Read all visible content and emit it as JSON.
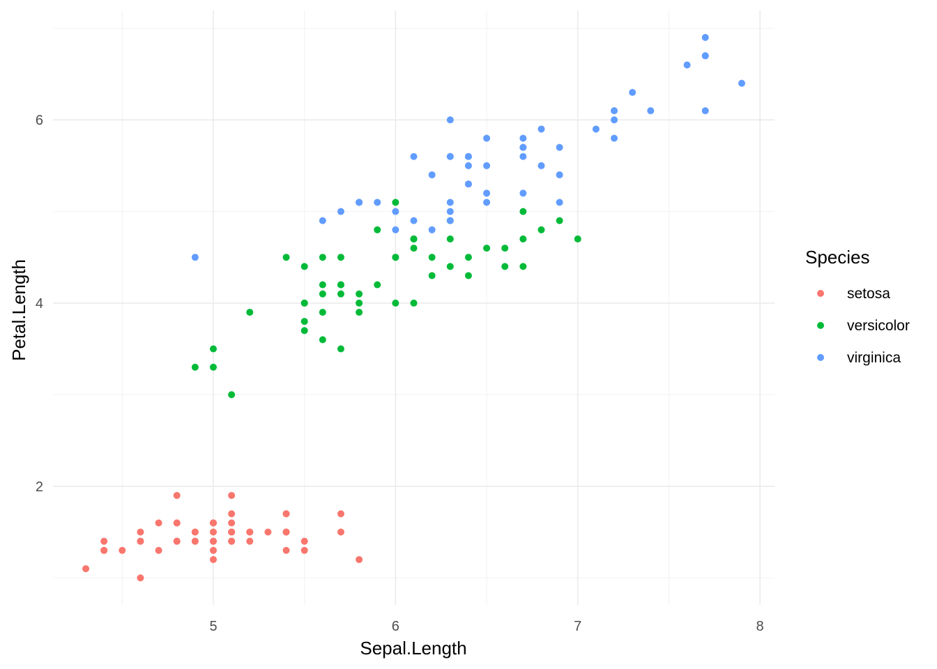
{
  "chart_data": {
    "type": "scatter",
    "xlabel": "Sepal.Length",
    "ylabel": "Petal.Length",
    "xlim": [
      4.12,
      8.08
    ],
    "ylim": [
      0.705,
      7.195
    ],
    "x_ticks": [
      5,
      6,
      7,
      8
    ],
    "x_tick_labels": [
      "5",
      "6",
      "7",
      "8"
    ],
    "y_ticks": [
      2,
      4,
      6
    ],
    "y_tick_labels": [
      "2",
      "4",
      "6"
    ],
    "x_minor_ticks": [
      4.5,
      5.5,
      6.5,
      7.5
    ],
    "y_minor_ticks": [
      1,
      3,
      5,
      7
    ],
    "grid": true,
    "legend": {
      "title": "Species",
      "position": "right",
      "entries": [
        "setosa",
        "versicolor",
        "virginica"
      ]
    },
    "series": [
      {
        "name": "setosa",
        "color": "#F8766D",
        "points": [
          [
            5.1,
            1.4
          ],
          [
            4.9,
            1.4
          ],
          [
            4.7,
            1.3
          ],
          [
            4.6,
            1.5
          ],
          [
            5.0,
            1.4
          ],
          [
            5.4,
            1.7
          ],
          [
            4.6,
            1.4
          ],
          [
            5.0,
            1.5
          ],
          [
            4.4,
            1.4
          ],
          [
            4.9,
            1.5
          ],
          [
            5.4,
            1.5
          ],
          [
            4.8,
            1.6
          ],
          [
            4.8,
            1.4
          ],
          [
            4.3,
            1.1
          ],
          [
            5.8,
            1.2
          ],
          [
            5.7,
            1.5
          ],
          [
            5.4,
            1.3
          ],
          [
            5.1,
            1.4
          ],
          [
            5.7,
            1.7
          ],
          [
            5.1,
            1.5
          ],
          [
            5.4,
            1.7
          ],
          [
            5.1,
            1.5
          ],
          [
            4.6,
            1.0
          ],
          [
            5.1,
            1.7
          ],
          [
            4.8,
            1.9
          ],
          [
            5.0,
            1.6
          ],
          [
            5.0,
            1.6
          ],
          [
            5.2,
            1.5
          ],
          [
            5.2,
            1.4
          ],
          [
            4.7,
            1.6
          ],
          [
            4.8,
            1.6
          ],
          [
            5.4,
            1.5
          ],
          [
            5.2,
            1.5
          ],
          [
            5.5,
            1.4
          ],
          [
            4.9,
            1.5
          ],
          [
            5.0,
            1.2
          ],
          [
            5.5,
            1.3
          ],
          [
            4.9,
            1.4
          ],
          [
            4.4,
            1.3
          ],
          [
            5.1,
            1.5
          ],
          [
            5.0,
            1.3
          ],
          [
            4.5,
            1.3
          ],
          [
            4.4,
            1.3
          ],
          [
            5.0,
            1.6
          ],
          [
            5.1,
            1.9
          ],
          [
            4.8,
            1.4
          ],
          [
            5.1,
            1.6
          ],
          [
            4.6,
            1.4
          ],
          [
            5.3,
            1.5
          ],
          [
            5.0,
            1.4
          ]
        ]
      },
      {
        "name": "versicolor",
        "color": "#00BA38",
        "points": [
          [
            7.0,
            4.7
          ],
          [
            6.4,
            4.5
          ],
          [
            6.9,
            4.9
          ],
          [
            5.5,
            4.0
          ],
          [
            6.5,
            4.6
          ],
          [
            5.7,
            4.5
          ],
          [
            6.3,
            4.7
          ],
          [
            4.9,
            3.3
          ],
          [
            6.6,
            4.6
          ],
          [
            5.2,
            3.9
          ],
          [
            5.0,
            3.5
          ],
          [
            5.9,
            4.2
          ],
          [
            6.0,
            4.0
          ],
          [
            6.1,
            4.7
          ],
          [
            5.6,
            3.6
          ],
          [
            6.7,
            4.4
          ],
          [
            5.6,
            4.5
          ],
          [
            5.8,
            4.1
          ],
          [
            6.2,
            4.5
          ],
          [
            5.6,
            3.9
          ],
          [
            5.9,
            4.8
          ],
          [
            6.1,
            4.0
          ],
          [
            6.3,
            4.9
          ],
          [
            6.1,
            4.7
          ],
          [
            6.4,
            4.3
          ],
          [
            6.6,
            4.4
          ],
          [
            6.8,
            4.8
          ],
          [
            6.7,
            5.0
          ],
          [
            6.0,
            4.5
          ],
          [
            5.7,
            3.5
          ],
          [
            5.5,
            3.8
          ],
          [
            5.5,
            3.7
          ],
          [
            5.8,
            3.9
          ],
          [
            6.0,
            5.1
          ],
          [
            5.4,
            4.5
          ],
          [
            6.0,
            4.5
          ],
          [
            6.7,
            4.7
          ],
          [
            6.3,
            4.4
          ],
          [
            5.6,
            4.1
          ],
          [
            5.5,
            4.0
          ],
          [
            5.5,
            4.4
          ],
          [
            6.1,
            4.6
          ],
          [
            5.8,
            4.0
          ],
          [
            5.0,
            3.3
          ],
          [
            5.6,
            4.2
          ],
          [
            5.7,
            4.2
          ],
          [
            5.7,
            4.2
          ],
          [
            6.2,
            4.3
          ],
          [
            5.1,
            3.0
          ],
          [
            5.7,
            4.1
          ]
        ]
      },
      {
        "name": "virginica",
        "color": "#619CFF",
        "points": [
          [
            6.3,
            6.0
          ],
          [
            5.8,
            5.1
          ],
          [
            7.1,
            5.9
          ],
          [
            6.3,
            5.6
          ],
          [
            6.5,
            5.8
          ],
          [
            7.6,
            6.6
          ],
          [
            4.9,
            4.5
          ],
          [
            7.3,
            6.3
          ],
          [
            6.7,
            5.8
          ],
          [
            7.2,
            6.1
          ],
          [
            6.5,
            5.1
          ],
          [
            6.4,
            5.3
          ],
          [
            6.8,
            5.5
          ],
          [
            5.7,
            5.0
          ],
          [
            5.8,
            5.1
          ],
          [
            6.4,
            5.3
          ],
          [
            6.5,
            5.5
          ],
          [
            7.7,
            6.7
          ],
          [
            7.7,
            6.9
          ],
          [
            6.0,
            5.0
          ],
          [
            6.9,
            5.7
          ],
          [
            5.6,
            4.9
          ],
          [
            7.7,
            6.7
          ],
          [
            6.3,
            4.9
          ],
          [
            6.7,
            5.7
          ],
          [
            7.2,
            6.0
          ],
          [
            6.2,
            4.8
          ],
          [
            6.1,
            4.9
          ],
          [
            6.4,
            5.6
          ],
          [
            7.2,
            5.8
          ],
          [
            7.4,
            6.1
          ],
          [
            7.9,
            6.4
          ],
          [
            6.4,
            5.6
          ],
          [
            6.3,
            5.1
          ],
          [
            6.1,
            5.6
          ],
          [
            7.7,
            6.1
          ],
          [
            6.3,
            5.6
          ],
          [
            6.4,
            5.5
          ],
          [
            6.0,
            4.8
          ],
          [
            6.9,
            5.4
          ],
          [
            6.7,
            5.6
          ],
          [
            6.9,
            5.1
          ],
          [
            5.8,
            5.1
          ],
          [
            6.8,
            5.9
          ],
          [
            6.7,
            5.7
          ],
          [
            6.7,
            5.2
          ],
          [
            6.3,
            5.0
          ],
          [
            6.5,
            5.2
          ],
          [
            6.2,
            5.4
          ],
          [
            5.9,
            5.1
          ]
        ]
      }
    ]
  }
}
